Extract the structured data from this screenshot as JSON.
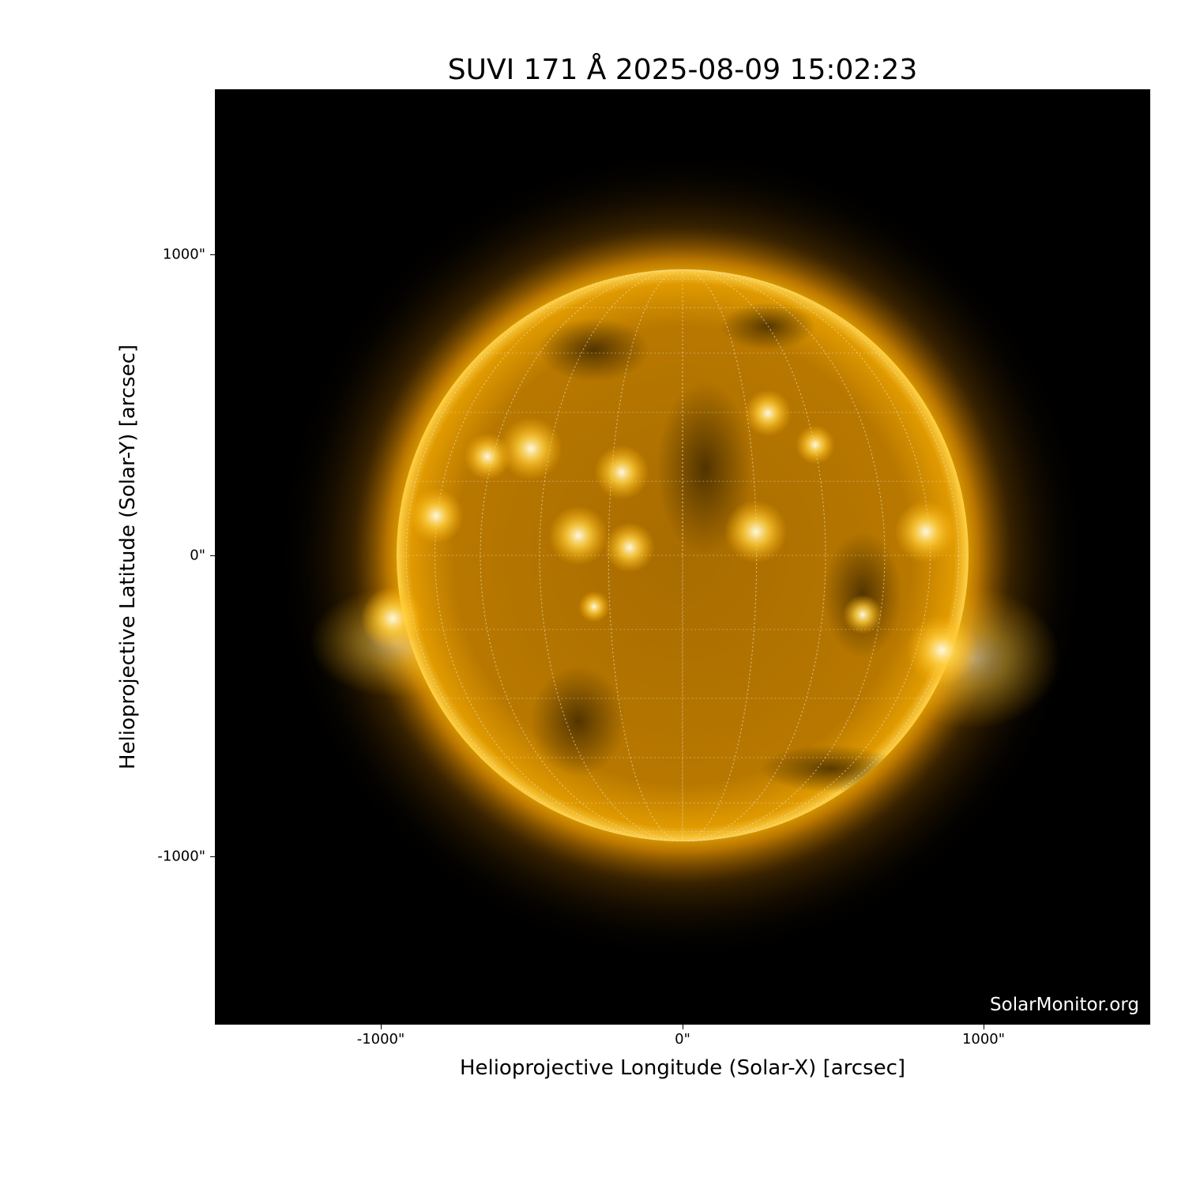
{
  "title": "SUVI 171 Å 2025-08-09 15:02:23",
  "x_axis": {
    "label": "Helioprojective Longitude (Solar-X) [arcsec]",
    "ticks": [
      "-1000\"",
      "0\"",
      "1000\""
    ]
  },
  "y_axis": {
    "label": "Helioprojective Latitude (Solar-Y) [arcsec]",
    "ticks": [
      "1000\"",
      "0\"",
      "-1000\""
    ]
  },
  "watermark": "SolarMonitor.org",
  "colors": {
    "sun": "#ffb000",
    "background": "#000000"
  }
}
